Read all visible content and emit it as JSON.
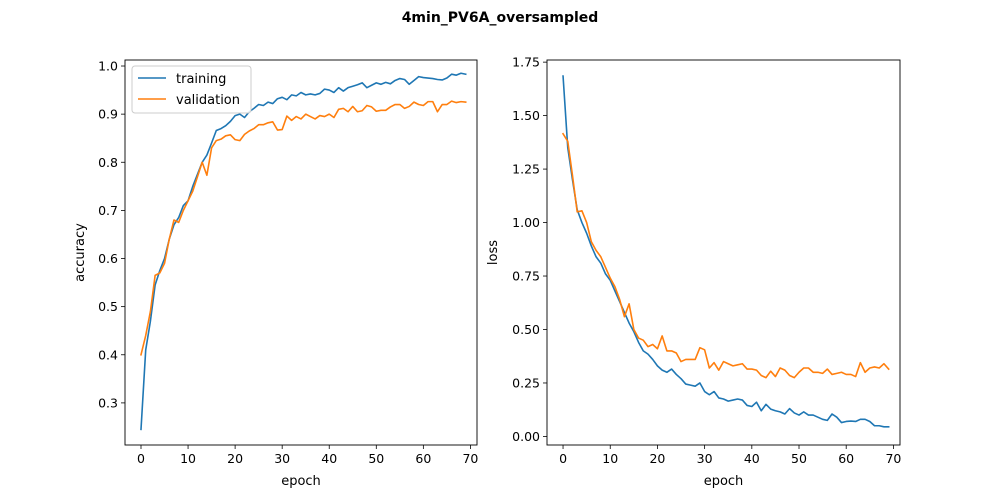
{
  "figure": {
    "suptitle": "4min_PV6A_oversampled"
  },
  "chart_data": [
    {
      "type": "line",
      "xlabel": "epoch",
      "ylabel": "accuracy",
      "xlim": [
        -3.4,
        71.4
      ],
      "ylim": [
        0.2125,
        1.0125
      ],
      "xticks": [
        0,
        10,
        20,
        30,
        40,
        50,
        60,
        70
      ],
      "yticks": [
        0.3,
        0.4,
        0.5,
        0.6,
        0.7,
        0.8,
        0.9,
        1.0
      ],
      "ytick_labels": [
        "0.3",
        "0.4",
        "0.5",
        "0.6",
        "0.7",
        "0.8",
        "0.9",
        "1.0"
      ],
      "legend": "upper-left",
      "series": [
        {
          "name": "training",
          "color": "#1f77b4",
          "values": [
            0.245,
            0.41,
            0.47,
            0.545,
            0.575,
            0.6,
            0.64,
            0.67,
            0.685,
            0.71,
            0.72,
            0.75,
            0.775,
            0.8,
            0.815,
            0.84,
            0.866,
            0.87,
            0.876,
            0.885,
            0.897,
            0.9,
            0.893,
            0.905,
            0.912,
            0.92,
            0.918,
            0.925,
            0.922,
            0.932,
            0.935,
            0.93,
            0.94,
            0.938,
            0.945,
            0.94,
            0.942,
            0.94,
            0.943,
            0.952,
            0.95,
            0.945,
            0.955,
            0.948,
            0.955,
            0.958,
            0.961,
            0.965,
            0.955,
            0.96,
            0.965,
            0.962,
            0.966,
            0.963,
            0.97,
            0.974,
            0.972,
            0.962,
            0.97,
            0.978,
            0.976,
            0.975,
            0.974,
            0.972,
            0.971,
            0.975,
            0.983,
            0.981,
            0.985,
            0.983
          ]
        },
        {
          "name": "validation",
          "color": "#ff7f0e",
          "values": [
            0.4,
            0.44,
            0.49,
            0.565,
            0.57,
            0.59,
            0.64,
            0.68,
            0.675,
            0.7,
            0.72,
            0.74,
            0.77,
            0.8,
            0.773,
            0.83,
            0.845,
            0.848,
            0.855,
            0.857,
            0.847,
            0.845,
            0.858,
            0.865,
            0.87,
            0.878,
            0.878,
            0.882,
            0.884,
            0.867,
            0.868,
            0.896,
            0.887,
            0.895,
            0.89,
            0.9,
            0.895,
            0.89,
            0.897,
            0.895,
            0.9,
            0.893,
            0.91,
            0.912,
            0.905,
            0.916,
            0.905,
            0.907,
            0.918,
            0.915,
            0.906,
            0.908,
            0.908,
            0.915,
            0.92,
            0.92,
            0.912,
            0.916,
            0.925,
            0.92,
            0.918,
            0.926,
            0.926,
            0.905,
            0.92,
            0.92,
            0.927,
            0.924,
            0.926,
            0.925
          ]
        }
      ]
    },
    {
      "type": "line",
      "xlabel": "epoch",
      "ylabel": "loss",
      "xlim": [
        -3.4,
        71.4
      ],
      "ylim": [
        -0.04,
        1.76
      ],
      "xticks": [
        0,
        10,
        20,
        30,
        40,
        50,
        60,
        70
      ],
      "yticks": [
        0.0,
        0.25,
        0.5,
        0.75,
        1.0,
        1.25,
        1.5,
        1.75
      ],
      "ytick_labels": [
        "0.00",
        "0.25",
        "0.50",
        "0.75",
        "1.00",
        "1.25",
        "1.50",
        "1.75"
      ],
      "series": [
        {
          "name": "training",
          "color": "#1f77b4",
          "values": [
            1.685,
            1.35,
            1.2,
            1.06,
            1.0,
            0.95,
            0.89,
            0.84,
            0.81,
            0.76,
            0.73,
            0.68,
            0.63,
            0.58,
            0.53,
            0.49,
            0.44,
            0.4,
            0.385,
            0.36,
            0.33,
            0.31,
            0.3,
            0.315,
            0.29,
            0.27,
            0.245,
            0.24,
            0.235,
            0.25,
            0.21,
            0.195,
            0.21,
            0.18,
            0.175,
            0.165,
            0.17,
            0.175,
            0.17,
            0.145,
            0.14,
            0.16,
            0.12,
            0.15,
            0.128,
            0.12,
            0.115,
            0.105,
            0.13,
            0.11,
            0.1,
            0.115,
            0.1,
            0.1,
            0.09,
            0.08,
            0.075,
            0.105,
            0.09,
            0.065,
            0.07,
            0.072,
            0.07,
            0.08,
            0.08,
            0.07,
            0.05,
            0.05,
            0.045,
            0.045
          ]
        },
        {
          "name": "validation",
          "color": "#ff7f0e",
          "values": [
            1.415,
            1.38,
            1.22,
            1.05,
            1.055,
            1.0,
            0.91,
            0.87,
            0.84,
            0.79,
            0.74,
            0.7,
            0.64,
            0.56,
            0.62,
            0.5,
            0.46,
            0.45,
            0.42,
            0.43,
            0.41,
            0.47,
            0.4,
            0.4,
            0.39,
            0.35,
            0.36,
            0.36,
            0.36,
            0.415,
            0.405,
            0.32,
            0.345,
            0.31,
            0.35,
            0.34,
            0.33,
            0.335,
            0.34,
            0.315,
            0.315,
            0.31,
            0.285,
            0.275,
            0.305,
            0.28,
            0.32,
            0.31,
            0.285,
            0.275,
            0.3,
            0.32,
            0.32,
            0.3,
            0.3,
            0.295,
            0.315,
            0.29,
            0.295,
            0.3,
            0.29,
            0.29,
            0.28,
            0.345,
            0.3,
            0.32,
            0.325,
            0.32,
            0.34,
            0.315
          ]
        }
      ]
    }
  ]
}
